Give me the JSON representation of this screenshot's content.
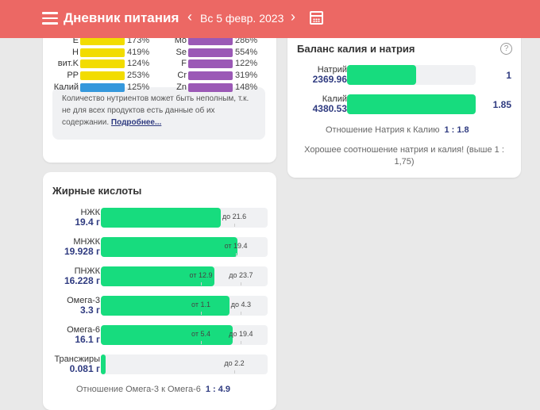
{
  "header": {
    "title": "Дневник питания",
    "date": "Вс 5 февр. 2023",
    "icons": [
      "menu-icon",
      "chevron-left-icon",
      "chevron-right-icon",
      "calendar-icon"
    ]
  },
  "vitamins": {
    "left": [
      {
        "label": "E",
        "pct": "173%"
      },
      {
        "label": "H",
        "pct": "419%"
      },
      {
        "label": "вит.K",
        "pct": "124%"
      },
      {
        "label": "PP",
        "pct": "253%"
      },
      {
        "label": "Калий",
        "pct": "125%"
      }
    ],
    "right": [
      {
        "label": "Mo",
        "pct": "286%"
      },
      {
        "label": "Se",
        "pct": "554%"
      },
      {
        "label": "F",
        "pct": "122%"
      },
      {
        "label": "Cr",
        "pct": "319%"
      },
      {
        "label": "Zn",
        "pct": "148%"
      }
    ],
    "colors": {
      "vitamin": "#f2dc00",
      "potassium": "#3598dc",
      "mineral": "#9b59b6"
    },
    "note": "Количество нутриентов может быть неполным, т.к. не для всех продуктов есть данные об их содержании.",
    "more_link": "Подробнее..."
  },
  "fatty": {
    "title": "Жирные кислоты",
    "rows": [
      {
        "name": "НЖК",
        "value": "19.4 г",
        "fill": 0.72,
        "from": null,
        "to": "до 21.6"
      },
      {
        "name": "МНЖК",
        "value": "19.928 г",
        "fill": 0.82,
        "from": "от 19.4",
        "to": null
      },
      {
        "name": "ПНЖК",
        "value": "16.228 г",
        "fill": 0.68,
        "from": "от 12.9",
        "to": "до 23.7"
      },
      {
        "name": "Омега-3",
        "value": "3.3 г",
        "fill": 0.77,
        "from": "от 1.1",
        "to": "до 4.3"
      },
      {
        "name": "Омега-6",
        "value": "16.1 г",
        "fill": 0.79,
        "from": "от 5.4",
        "to": "до 19.4"
      },
      {
        "name": "Трансжиры",
        "value": "0.081 г",
        "fill": 0.03,
        "from": null,
        "to": "до 2.2"
      }
    ],
    "ratio_label": "Отношение Омега-3 к Омега-6",
    "ratio_value": "1 : 4.9"
  },
  "balance": {
    "title": "Баланс калия и натрия",
    "rows": [
      {
        "name": "Натрий",
        "value": "2369.96",
        "fill": 0.54,
        "ratio": "1"
      },
      {
        "name": "Калий",
        "value": "4380.53",
        "fill": 1.0,
        "ratio": "1.85"
      }
    ],
    "ratio_label": "Отношение Натрия к Калию",
    "ratio_value": "1 : 1.8",
    "message": "Хорошее соотношение натрия и калия! (выше 1 : 1,75)"
  }
}
